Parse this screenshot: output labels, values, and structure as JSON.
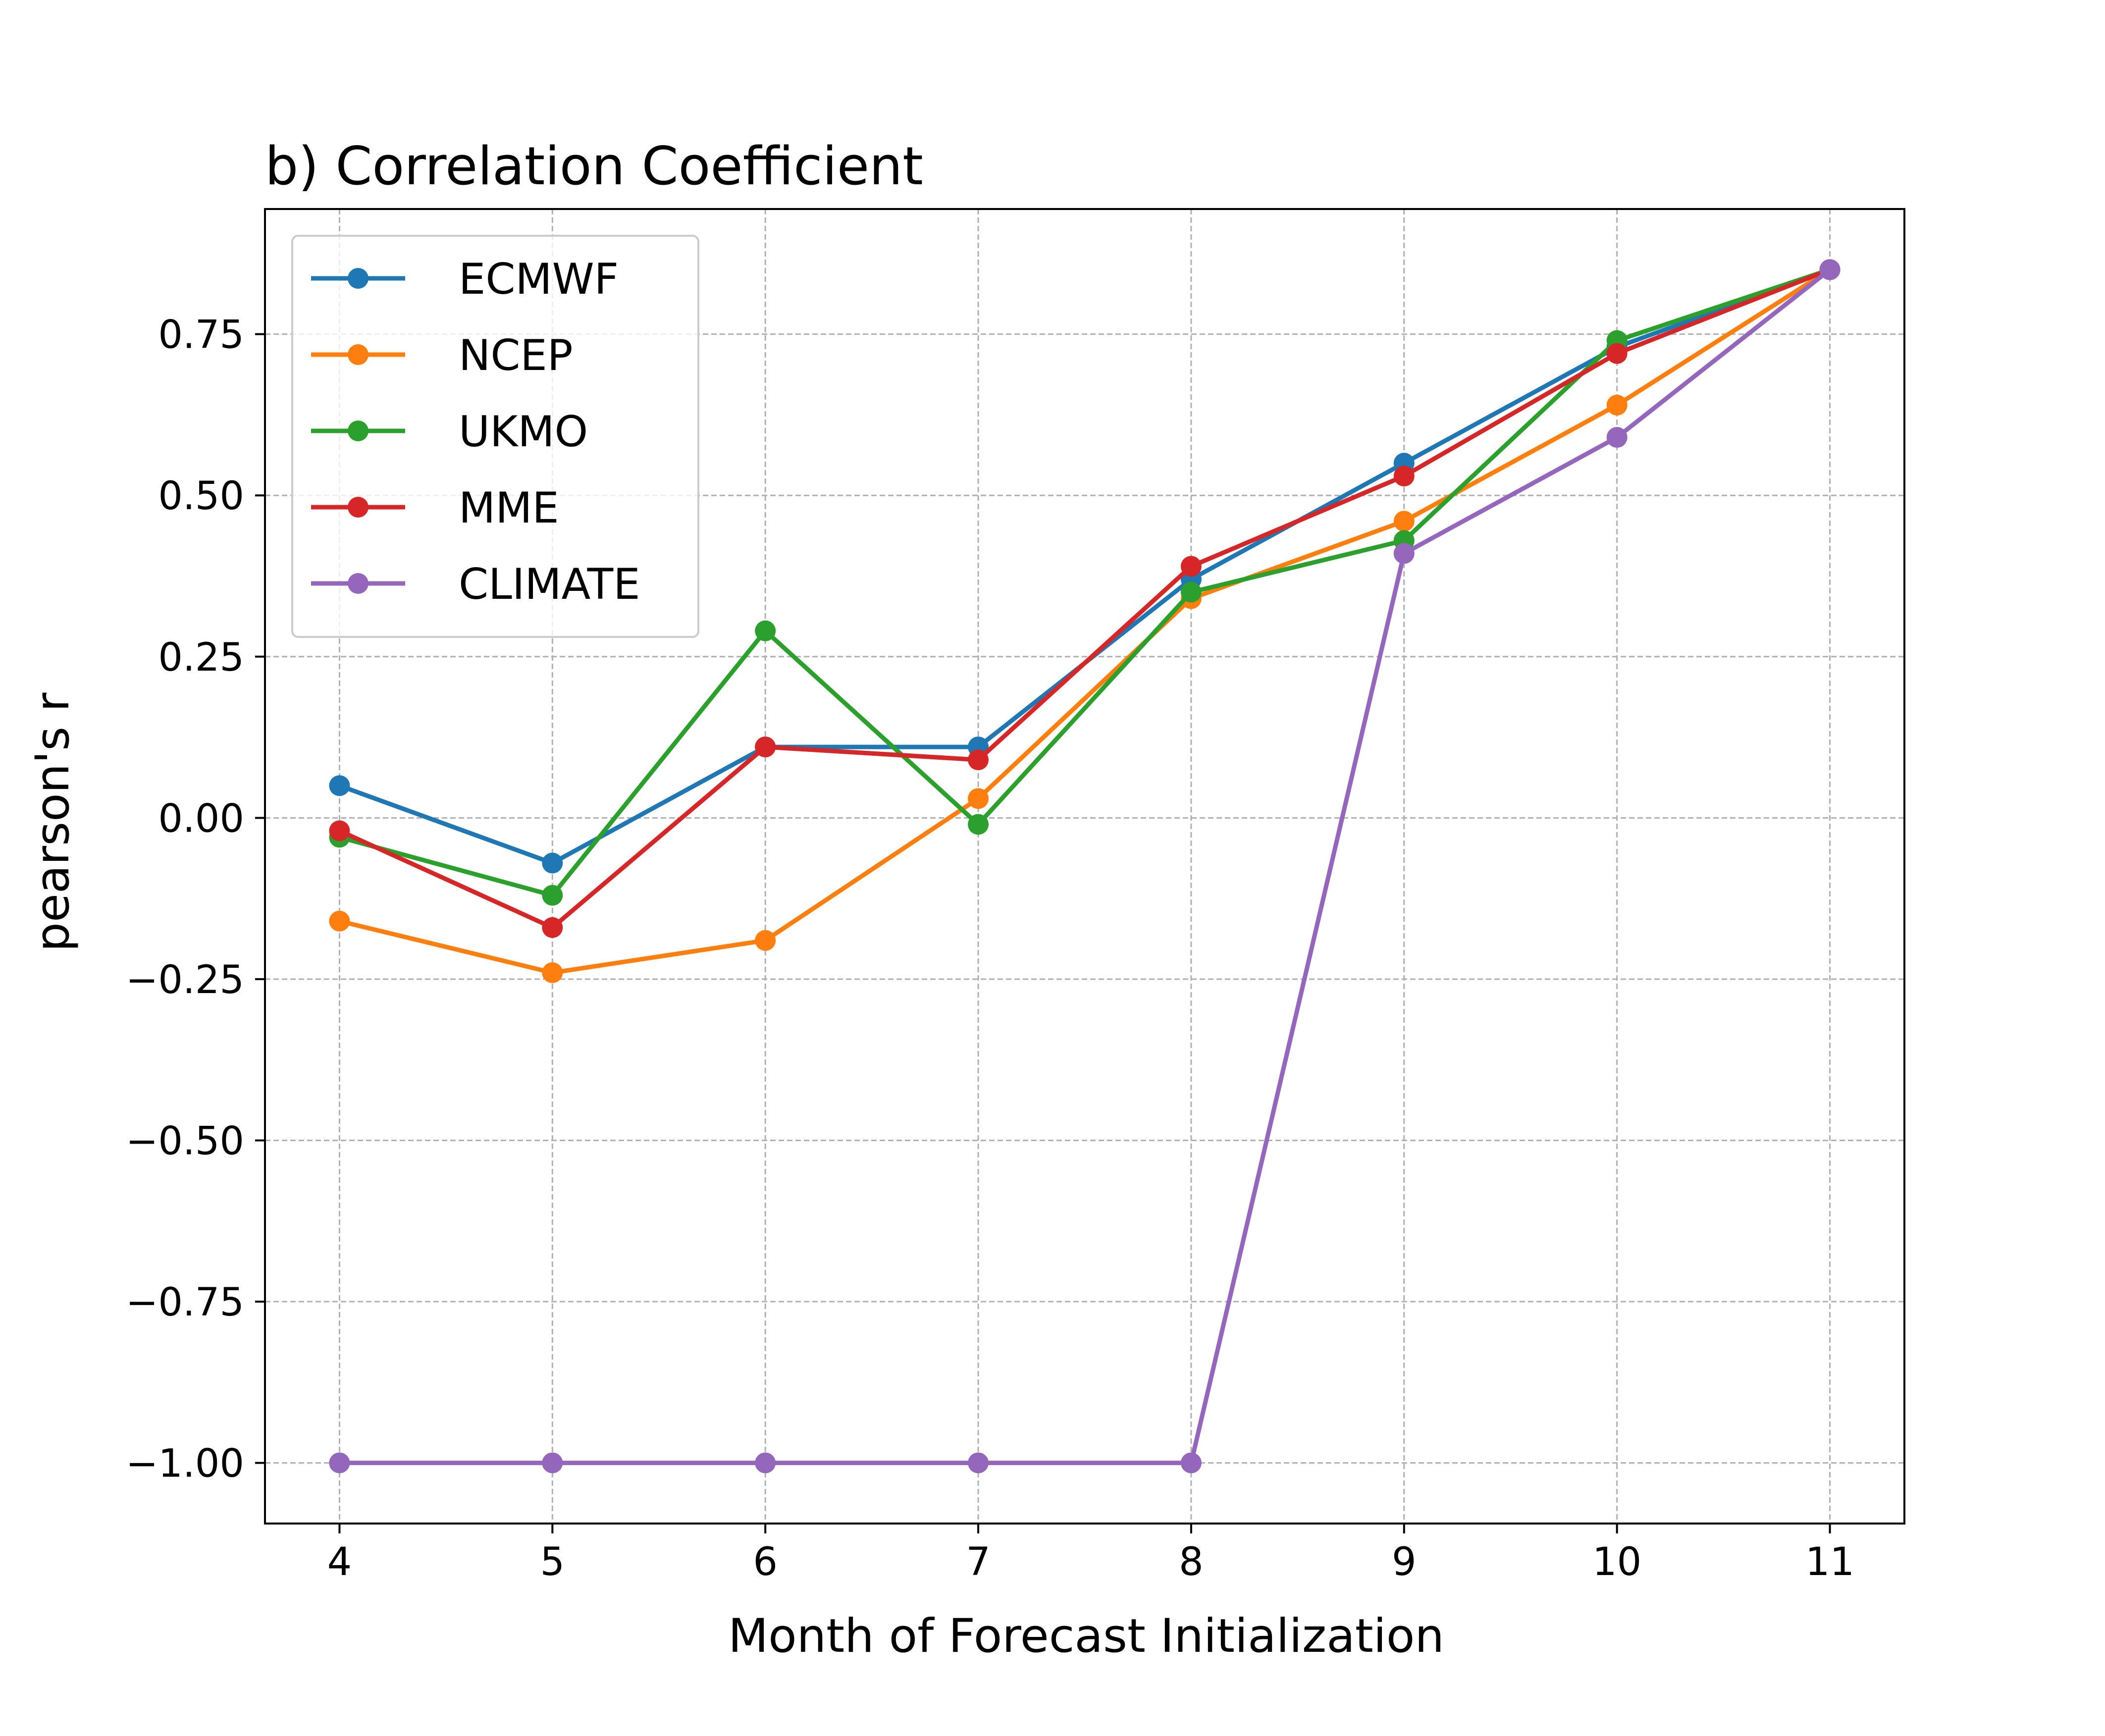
{
  "chart_data": {
    "type": "line",
    "title": "b) Correlation Coefficient",
    "xlabel": "Month of Forecast Initialization",
    "ylabel": "pearson's r",
    "x": [
      4,
      5,
      6,
      7,
      8,
      9,
      10,
      11
    ],
    "x_tick_labels": [
      "4",
      "5",
      "6",
      "7",
      "8",
      "9",
      "10",
      "11"
    ],
    "xlim": [
      3.65,
      11.35
    ],
    "y_ticks": [
      -1.0,
      -0.75,
      -0.5,
      -0.25,
      0.0,
      0.25,
      0.5,
      0.75
    ],
    "y_tick_labels": [
      "−1.00",
      "−0.75",
      "−0.50",
      "−0.25",
      "0.00",
      "0.25",
      "0.50",
      "0.75"
    ],
    "ylim": [
      -1.094,
      0.944
    ],
    "grid": true,
    "legend_position": "upper-left",
    "series": [
      {
        "name": "ECMWF",
        "color": "#1f77b4",
        "values": [
          0.05,
          -0.07,
          0.11,
          0.11,
          0.37,
          0.55,
          0.73,
          0.85
        ]
      },
      {
        "name": "NCEP",
        "color": "#ff7f0e",
        "values": [
          -0.16,
          -0.24,
          -0.19,
          0.03,
          0.34,
          0.46,
          0.64,
          0.85
        ]
      },
      {
        "name": "UKMO",
        "color": "#2ca02c",
        "values": [
          -0.03,
          -0.12,
          0.29,
          -0.01,
          0.35,
          0.43,
          0.74,
          0.85
        ]
      },
      {
        "name": "MME",
        "color": "#d62728",
        "values": [
          -0.02,
          -0.17,
          0.11,
          0.09,
          0.39,
          0.53,
          0.72,
          0.85
        ]
      },
      {
        "name": "CLIMATE",
        "color": "#9467bd",
        "values": [
          -1.0,
          -1.0,
          -1.0,
          -1.0,
          -1.0,
          0.41,
          0.59,
          0.85
        ]
      }
    ]
  }
}
